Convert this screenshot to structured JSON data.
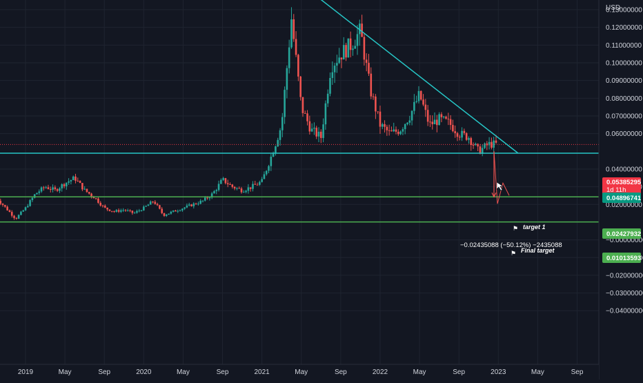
{
  "axis": {
    "currency_label": "USD",
    "y_ticks": [
      "0.14000000",
      "0.13000000",
      "0.12000000",
      "0.11000000",
      "0.10000000",
      "0.09000000",
      "0.08000000",
      "0.07000000",
      "0.06000000",
      "0.04000000",
      "0.03000000",
      "0.02000000",
      "−0.00000000",
      "−0.01000000",
      "−0.02000000",
      "−0.03000000",
      "−0.04000000"
    ],
    "y_tick_values": [
      0.14,
      0.13,
      0.12,
      0.11,
      0.1,
      0.09,
      0.08,
      0.07,
      0.06,
      0.04,
      0.03,
      0.02,
      0,
      -0.01,
      -0.02,
      -0.03,
      -0.04
    ],
    "x_ticks": [
      "2019",
      "May",
      "Sep",
      "2020",
      "May",
      "Sep",
      "2021",
      "May",
      "Sep",
      "2022",
      "May",
      "Sep",
      "2023",
      "May",
      "Sep"
    ],
    "x_tick_dates": [
      "2019-01",
      "2019-05",
      "2019-09",
      "2020-01",
      "2020-05",
      "2020-09",
      "2021-01",
      "2021-05",
      "2021-09",
      "2022-01",
      "2022-05",
      "2022-09",
      "2023-01",
      "2023-05",
      "2023-09"
    ]
  },
  "price_labels": {
    "current_price": "0.05385295",
    "countdown": "1d 11h",
    "support_price": "0.04896741",
    "target1_price": "0.02427932",
    "final_target_price": "0.01013593"
  },
  "annotations": {
    "target1": "target 1",
    "final_target": "Final target",
    "measure": "−0.02435088 (−50.12%) −2435088"
  },
  "colors": {
    "background": "#131722",
    "up_candle": "#26a69a",
    "down_candle": "#ef5350",
    "trendline": "#26c6c6",
    "support_line": "#26c6c6",
    "target_lines": "#4caf50",
    "current_price_bg": "#f23645"
  },
  "chart_data": {
    "type": "candlestick",
    "timeframe": "1W",
    "x_range": [
      "2018-10",
      "2023-10"
    ],
    "ylim": [
      -0.045,
      0.15
    ],
    "close_series": {
      "dates": [
        "2018-10",
        "2018-11",
        "2018-12",
        "2019-01",
        "2019-02",
        "2019-03",
        "2019-04",
        "2019-05",
        "2019-06",
        "2019-07",
        "2019-08",
        "2019-09",
        "2019-10",
        "2019-11",
        "2019-12",
        "2020-01",
        "2020-02",
        "2020-03",
        "2020-04",
        "2020-05",
        "2020-06",
        "2020-07",
        "2020-08",
        "2020-09",
        "2020-10",
        "2020-11",
        "2020-12",
        "2021-01",
        "2021-02",
        "2021-03",
        "2021-04",
        "2021-05",
        "2021-06",
        "2021-07",
        "2021-08",
        "2021-09",
        "2021-10",
        "2021-11",
        "2021-12",
        "2022-01",
        "2022-02",
        "2022-03",
        "2022-04",
        "2022-05",
        "2022-06",
        "2022-07",
        "2022-08",
        "2022-09",
        "2022-10",
        "2022-11",
        "2022-12"
      ],
      "values": [
        0.024,
        0.018,
        0.012,
        0.018,
        0.026,
        0.03,
        0.028,
        0.032,
        0.035,
        0.028,
        0.024,
        0.018,
        0.016,
        0.017,
        0.015,
        0.018,
        0.022,
        0.014,
        0.016,
        0.018,
        0.02,
        0.022,
        0.026,
        0.034,
        0.03,
        0.028,
        0.03,
        0.033,
        0.048,
        0.065,
        0.125,
        0.075,
        0.062,
        0.058,
        0.098,
        0.105,
        0.11,
        0.118,
        0.085,
        0.065,
        0.06,
        0.062,
        0.07,
        0.082,
        0.065,
        0.068,
        0.066,
        0.06,
        0.058,
        0.05,
        0.054
      ]
    },
    "horizontal_levels": [
      {
        "price": 0.05385295,
        "style": "dotted",
        "role": "current"
      },
      {
        "price": 0.04896741,
        "style": "solid",
        "role": "support"
      },
      {
        "price": 0.02427932,
        "style": "solid",
        "role": "target 1"
      },
      {
        "price": 0.01013593,
        "style": "solid",
        "role": "Final target"
      }
    ],
    "trendline": {
      "from": {
        "date": "2021-03",
        "price": 0.153
      },
      "to": {
        "date": "2023-03",
        "price": 0.049
      }
    },
    "projection": {
      "from": {
        "date": "2022-12",
        "price": 0.05
      },
      "to": {
        "date": "2022-12",
        "price": 0.0243
      },
      "change": -0.02435088,
      "change_pct": -50.12
    },
    "grid": true
  }
}
